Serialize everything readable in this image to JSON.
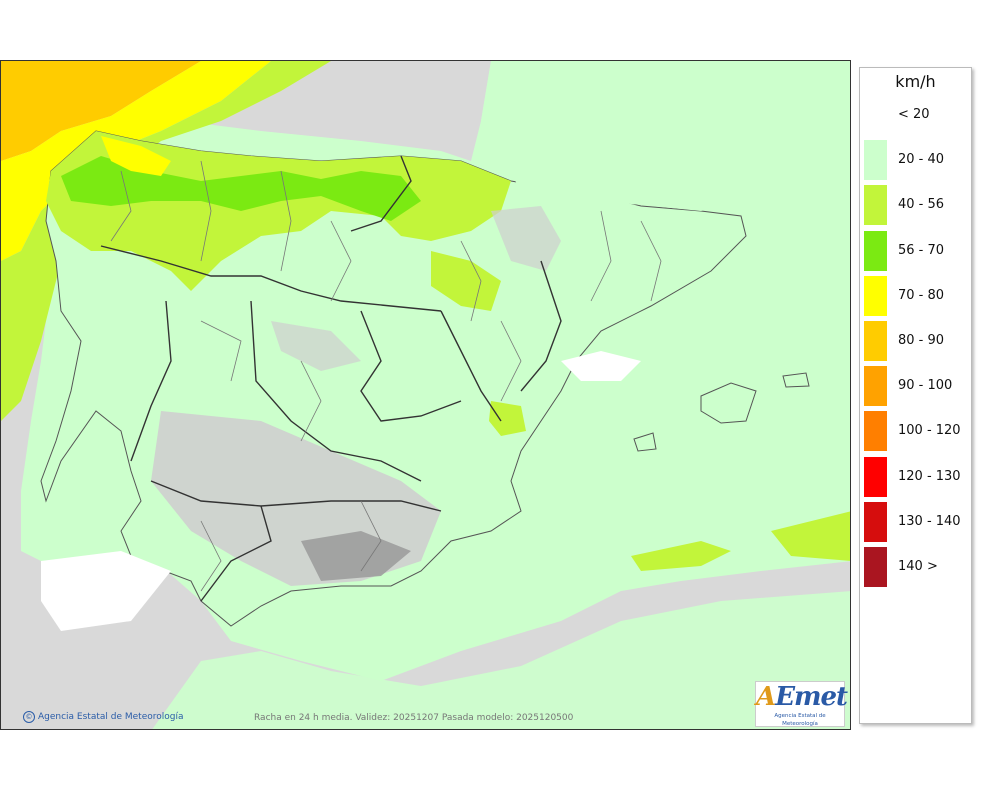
{
  "legend": {
    "unit": "km/h",
    "items": [
      {
        "label": "< 20",
        "color": "#ffffff"
      },
      {
        "label": "20 - 40",
        "color": "#ccffcc"
      },
      {
        "label": "40 - 56",
        "color": "#c2f53a"
      },
      {
        "label": "56 - 70",
        "color": "#7bea12"
      },
      {
        "label": "70 - 80",
        "color": "#ffff00"
      },
      {
        "label": "80 - 90",
        "color": "#ffcc00"
      },
      {
        "label": "90 - 100",
        "color": "#ffa200"
      },
      {
        "label": "100 - 120",
        "color": "#ff7f00"
      },
      {
        "label": "120 - 130",
        "color": "#ff0000"
      },
      {
        "label": "130 - 140",
        "color": "#d60d0d"
      },
      {
        "label": "140 >",
        "color": "#aa1520"
      }
    ]
  },
  "map": {
    "credit": "Agencia Estatal de Meteorología",
    "caption": "Racha en 24 h media. Validez: 20251207 Pasada modelo: 2025120500",
    "logo": {
      "mark_a": "A",
      "mark_rest": "Emet",
      "subtitle": "Agencia Estatal de Meteorología"
    },
    "colors": {
      "sea_calm": "#ffffff",
      "land_gray": "#d9d9d9",
      "border": "#333333"
    }
  }
}
